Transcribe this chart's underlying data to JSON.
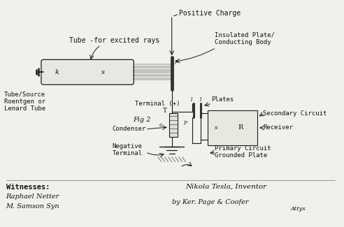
{
  "background_color": "#f0f0ec",
  "fig_width": 4.92,
  "fig_height": 3.25,
  "dpi": 100,
  "labels": {
    "positive_charge": "Positive Charge",
    "tube_excited": "Tube -for excited rays",
    "insulated_plate": "Insulated Plate/\nConducting Body",
    "tube_source": "Tube/Source\nRoentgen or\nLenard Tube",
    "terminal_plus": "Terminal (+)",
    "fig2": "Fig 2",
    "condenser": "Condenser",
    "negative_terminal": "Negative\nTerminal",
    "plates": "Plates",
    "secondary_circuit": "Secondary Circuit",
    "receiver": "Receiver",
    "primary_circuit": "Primary Circuit\nGrounded Plate",
    "witnesses": "Witnesses:",
    "nikola_tesla": "Nikola Tesla, Inventor",
    "by_line": "by Ker. Page & Coofer",
    "attys": "Attys",
    "sig1": "Raphael Netter",
    "sig2": "M. Samson Syn",
    "k_label": "k",
    "s_label": "s",
    "T_label": "T",
    "c_label": "c",
    "p_label": "p",
    "R_label": "R",
    "s2_label": "s"
  }
}
